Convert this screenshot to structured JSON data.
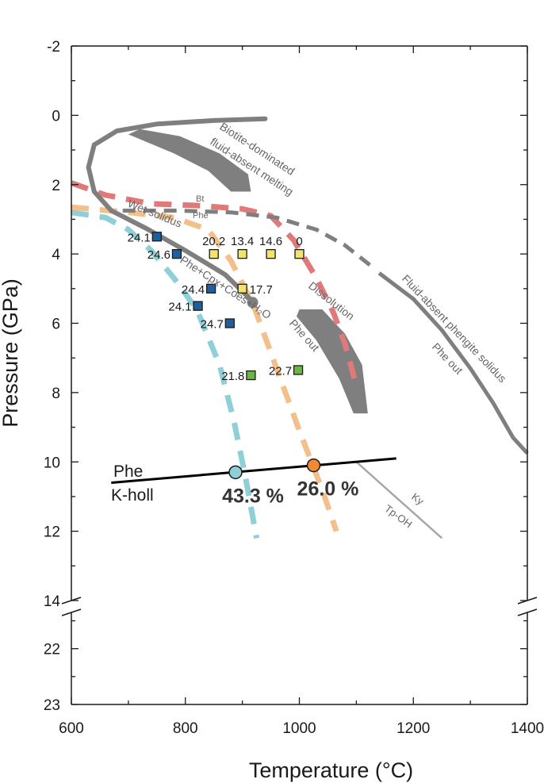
{
  "chart_data": {
    "type": "scatter",
    "xlabel": "Temperature (°C)",
    "ylabel": "Pressure (GPa)",
    "xlim": [
      600,
      1400
    ],
    "ylim_upper": [
      -2,
      14
    ],
    "ylim_lower": [
      21,
      23
    ],
    "y_inverted": true,
    "axis_break": true,
    "x_ticks": [
      600,
      800,
      1000,
      1200,
      1400
    ],
    "y_ticks_upper": [
      -2,
      0,
      2,
      4,
      6,
      8,
      10,
      12,
      14
    ],
    "y_ticks_lower": [
      22,
      23
    ],
    "grid": false,
    "colors": {
      "dark_gray": "#7f7f7f",
      "blue_square": "#1f5f9f",
      "yellow_square": "#f2e36a",
      "green_square": "#6fb545",
      "red_dash": "#e07a7a",
      "orange_dash": "#f3c08b",
      "cyan_dash": "#8fcfd8",
      "blue_circle": "#8fcfd8",
      "orange_circle": "#f08a32"
    },
    "series": [
      {
        "marker": "square",
        "color": "#1f5f9f",
        "points": [
          {
            "x": 750,
            "y": 3.5,
            "label": "24.1"
          },
          {
            "x": 785,
            "y": 4.0,
            "label": "24.6"
          },
          {
            "x": 845,
            "y": 5.0,
            "label": "24.4"
          },
          {
            "x": 822,
            "y": 5.5,
            "label": "24.1"
          },
          {
            "x": 878,
            "y": 6.0,
            "label": "24.7"
          }
        ]
      },
      {
        "marker": "square",
        "color": "#f2e36a",
        "points": [
          {
            "x": 850,
            "y": 4.0,
            "label": "20.2"
          },
          {
            "x": 900,
            "y": 4.0,
            "label": "13.4"
          },
          {
            "x": 950,
            "y": 4.0,
            "label": "14.6"
          },
          {
            "x": 1000,
            "y": 4.0,
            "label": "0"
          },
          {
            "x": 900,
            "y": 5.0,
            "label": "17.7"
          }
        ]
      },
      {
        "marker": "square",
        "color": "#6fb545",
        "points": [
          {
            "x": 915,
            "y": 7.5,
            "label": "21.8"
          },
          {
            "x": 998,
            "y": 7.35,
            "label": "22.7"
          }
        ]
      }
    ],
    "phase_boundary": {
      "upper_label": "Phe",
      "lower_label": "K-holl",
      "points": [
        [
          670,
          10.6
        ],
        [
          1170,
          9.9
        ]
      ],
      "markers": [
        {
          "x": 888,
          "y": 10.3,
          "color": "#8fcfd8",
          "label": "43.3 %"
        },
        {
          "x": 1025,
          "y": 10.1,
          "color": "#f08a32",
          "label": "26.0 %"
        }
      ]
    },
    "annotations": {
      "biotite": "Biotite-dominated",
      "biotite2": "fluid-absent melting",
      "bt": "Bt",
      "phe_small": "Phe",
      "wet_solidus": "Wet solidus",
      "reaction": "Phe+Cpx+Coes+H₂O",
      "dissolution": "Dissolution",
      "phe_out_mid": "Phe out",
      "fluid_absent": "Fluid-absent phengite solidus",
      "phe_out_right": "Phe out",
      "ky": "Ky",
      "tp_oh": "Tp-OH"
    }
  }
}
